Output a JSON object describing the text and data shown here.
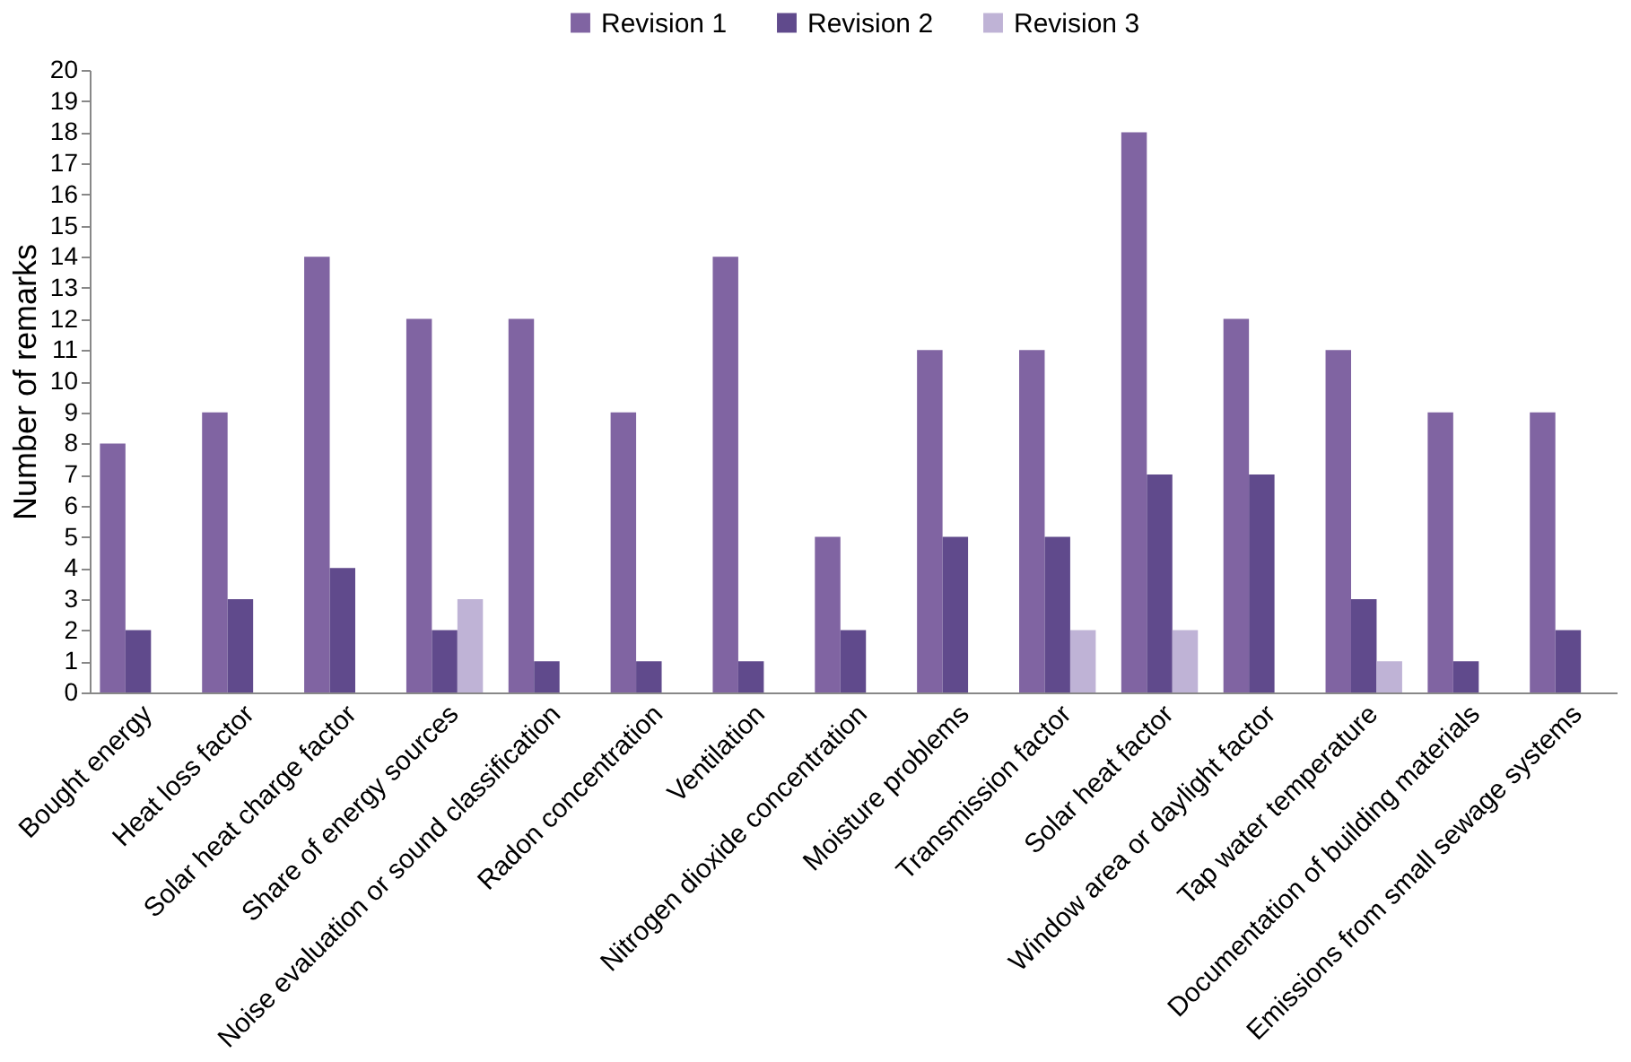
{
  "chart_data": {
    "type": "bar",
    "ylabel": "Number of remarks",
    "categories": [
      "Bought energy",
      "Heat loss factor",
      "Solar heat charge factor",
      "Share of energy sources",
      "Noise evaluation or sound classification",
      "Radon concentration",
      "Ventilation",
      "Nitrogen dioxide concentration",
      "Moisture problems",
      "Transmission factor",
      "Solar heat factor",
      "Window area or daylight factor",
      "Tap water temperature",
      "Documentation of building materials",
      "Emissions from small sewage systems"
    ],
    "series": [
      {
        "name": "Revision 1",
        "color": "#8064a2",
        "values": [
          8,
          9,
          14,
          12,
          12,
          9,
          14,
          5,
          11,
          11,
          18,
          12,
          11,
          9,
          9
        ]
      },
      {
        "name": "Revision 2",
        "color": "#604a8c",
        "values": [
          2,
          3,
          4,
          2,
          1,
          1,
          1,
          2,
          5,
          5,
          7,
          7,
          3,
          1,
          2
        ]
      },
      {
        "name": "Revision 3",
        "color": "#bfb3d6",
        "values": [
          0,
          0,
          0,
          3,
          0,
          0,
          0,
          0,
          0,
          2,
          2,
          0,
          1,
          0,
          0
        ]
      }
    ],
    "ylim": [
      0,
      20
    ],
    "yticks": [
      0,
      1,
      2,
      3,
      4,
      5,
      6,
      7,
      8,
      9,
      10,
      11,
      12,
      13,
      14,
      15,
      16,
      17,
      18,
      19,
      20
    ],
    "legend": "top"
  }
}
